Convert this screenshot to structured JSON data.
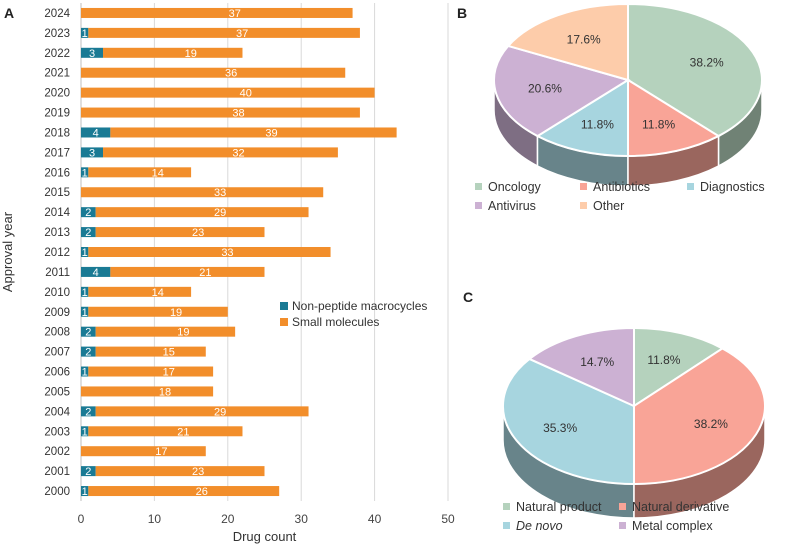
{
  "chart_data": [
    {
      "panel": "A",
      "type": "bar",
      "orientation": "horizontal",
      "stacked": true,
      "categories": [
        "2024",
        "2023",
        "2022",
        "2021",
        "2020",
        "2019",
        "2018",
        "2017",
        "2016",
        "2015",
        "2014",
        "2013",
        "2012",
        "2011",
        "2010",
        "2009",
        "2008",
        "2007",
        "2006",
        "2005",
        "2004",
        "2003",
        "2002",
        "2001",
        "2000"
      ],
      "series": [
        {
          "name": "Non-peptide macrocycles",
          "color": "#1a7a94",
          "values": [
            0,
            1,
            3,
            0,
            0,
            0,
            4,
            3,
            1,
            0,
            2,
            2,
            1,
            4,
            1,
            1,
            2,
            2,
            1,
            0,
            2,
            1,
            0,
            2,
            1
          ]
        },
        {
          "name": "Small molecules",
          "color": "#f28e2b",
          "values": [
            37,
            37,
            19,
            36,
            40,
            38,
            39,
            32,
            14,
            33,
            29,
            23,
            33,
            21,
            14,
            19,
            19,
            15,
            17,
            18,
            29,
            21,
            17,
            23,
            26
          ]
        }
      ],
      "xlabel": "Drug count",
      "ylabel": "Approval year",
      "xlim": [
        0,
        50
      ],
      "xticks": [
        0,
        10,
        20,
        30,
        40,
        50
      ],
      "grid": true,
      "legend": "right-middle"
    },
    {
      "panel": "B",
      "type": "pie",
      "style": "3d",
      "slices": [
        {
          "label": "Oncology",
          "value": 38.2,
          "text": "38.2%",
          "color": "#b5d2bd"
        },
        {
          "label": "Antibiotics",
          "value": 11.8,
          "text": "11.8%",
          "color": "#f9a497"
        },
        {
          "label": "Diagnostics",
          "value": 11.8,
          "text": "11.8%",
          "color": "#a7d5df"
        },
        {
          "label": "Antivirus",
          "value": 20.6,
          "text": "20.6%",
          "color": "#ccb1d3"
        },
        {
          "label": "Other",
          "value": 17.6,
          "text": "17.6%",
          "color": "#fdccaa"
        }
      ],
      "legend": "bottom"
    },
    {
      "panel": "C",
      "type": "pie",
      "style": "3d",
      "slices": [
        {
          "label": "Natural product",
          "value": 11.8,
          "text": "11.8%",
          "color": "#b5d2bd"
        },
        {
          "label": "Natural derivative",
          "value": 38.2,
          "text": "38.2%",
          "color": "#f9a497"
        },
        {
          "label": "De novo",
          "value": 35.3,
          "text": "35.3%",
          "color": "#a7d5df"
        },
        {
          "label": "Metal complex",
          "value": 14.7,
          "text": "14.7%",
          "color": "#ccb1d3"
        }
      ],
      "legend": "bottom"
    }
  ]
}
